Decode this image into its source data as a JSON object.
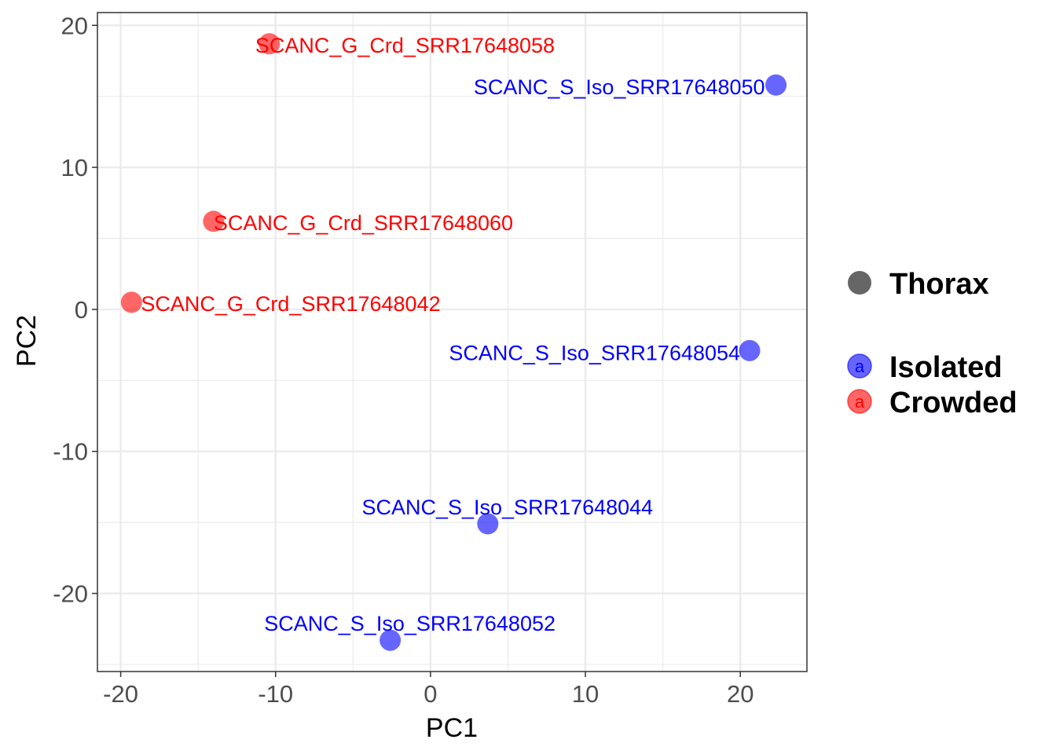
{
  "chart_data": {
    "type": "scatter",
    "xlabel": "PC1",
    "ylabel": "PC2",
    "xlim": [
      -21.5,
      24.3
    ],
    "ylim": [
      -25.5,
      20.9
    ],
    "x_ticks": [
      -20,
      -10,
      0,
      10,
      20
    ],
    "y_ticks": [
      -20,
      -10,
      0,
      10,
      20
    ],
    "x_tick_labels": [
      "-20",
      "-10",
      "0",
      "10",
      "20"
    ],
    "y_tick_labels": [
      "-20",
      "-10",
      "0",
      "10",
      "20"
    ],
    "grid": true,
    "legend": {
      "placement": "right",
      "shape_title": "Thorax",
      "entries": [
        {
          "name": "Isolated",
          "color": "#0000ff",
          "key_letter": "a"
        },
        {
          "name": "Crowded",
          "color": "#ff0000",
          "key_letter": "a"
        }
      ]
    },
    "series": [
      {
        "name": "Isolated",
        "color": "#0000ff",
        "points": [
          {
            "x": 22.3,
            "y": 15.8,
            "label": "SCANC_S_Iso_SRR17648050"
          },
          {
            "x": 20.6,
            "y": -2.9,
            "label": "SCANC_S_Iso_SRR17648054"
          },
          {
            "x": 3.7,
            "y": -15.1,
            "label": "SCANC_S_Iso_SRR17648044"
          },
          {
            "x": -2.6,
            "y": -23.3,
            "label": "SCANC_S_Iso_SRR17648052"
          }
        ]
      },
      {
        "name": "Crowded",
        "color": "#ff0000",
        "points": [
          {
            "x": -10.4,
            "y": 18.7,
            "label": "SCANC_G_Crd_SRR17648058"
          },
          {
            "x": -14.0,
            "y": 6.2,
            "label": "SCANC_G_Crd_SRR17648060"
          },
          {
            "x": -19.3,
            "y": 0.5,
            "label": "SCANC_G_Crd_SRR17648042"
          }
        ]
      }
    ]
  }
}
